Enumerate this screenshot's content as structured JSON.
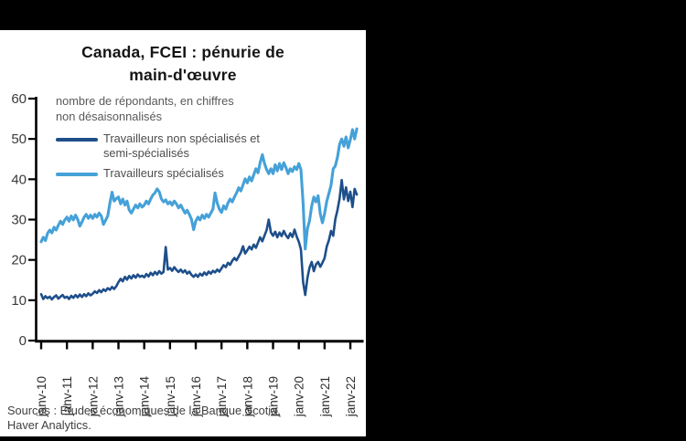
{
  "layout": {
    "background_color": "#000000",
    "panel_color": "#ffffff",
    "axis_color": "#000000",
    "y_tick_label_color": "#3a3a3a",
    "x_tick_label_color": "#2f2f2f"
  },
  "chart_data": {
    "type": "line",
    "title": "Canada, FCEI : pénurie de main-d'œuvre",
    "title_lines": [
      "Canada, FCEI : pénurie de",
      "main-d'œuvre"
    ],
    "subtitle_lines": [
      "nombre de répondants, en chiffres",
      "non désaisonnalisés"
    ],
    "xlabel": "",
    "ylabel": "",
    "ylim": [
      0,
      60
    ],
    "yticks": [
      0,
      10,
      20,
      30,
      40,
      50,
      60
    ],
    "x_tick_labels": [
      "janv-10",
      "janv-11",
      "janv-12",
      "janv-13",
      "janv-14",
      "janv-15",
      "janv-16",
      "janv-17",
      "janv-18",
      "janv-19",
      "janv-20",
      "janv-21",
      "janv-22"
    ],
    "x_frequency": "monthly",
    "x_start": "janv-10",
    "grid": "off",
    "legend_position": "top-left-inside",
    "legend": [
      {
        "label_lines": [
          "Travailleurs non spécialisés et",
          "semi-spécialisés"
        ],
        "color": "#1e4f8a"
      },
      {
        "label_lines": [
          "Travailleurs spécialisés"
        ],
        "color": "#45a1d8"
      }
    ],
    "series": [
      {
        "name": "Travailleurs non spécialisés et semi-spécialisés",
        "color": "#1e4f8a",
        "stroke_width": 2.6,
        "values": [
          11.5,
          10.3,
          11.0,
          10.5,
          10.9,
          10.2,
          10.8,
          11.2,
          10.4,
          10.9,
          11.3,
          10.6,
          10.9,
          10.3,
          11.1,
          10.6,
          11.3,
          10.7,
          11.4,
          10.8,
          11.5,
          11.0,
          11.7,
          11.2,
          11.6,
          12.2,
          11.8,
          12.5,
          12.0,
          12.7,
          12.3,
          13.0,
          12.6,
          13.3,
          12.8,
          13.5,
          14.5,
          15.3,
          14.7,
          15.8,
          15.1,
          16.0,
          15.4,
          16.2,
          15.6,
          16.4,
          15.8,
          16.1,
          15.7,
          16.5,
          15.9,
          16.8,
          16.2,
          17.0,
          16.4,
          17.2,
          16.6,
          17.0,
          23.2,
          17.6,
          18.0,
          17.3,
          18.2,
          17.5,
          17.0,
          17.6,
          16.9,
          17.4,
          16.6,
          17.1,
          16.3,
          15.8,
          16.4,
          15.8,
          16.6,
          16.1,
          16.9,
          16.3,
          17.1,
          16.6,
          17.3,
          16.9,
          17.6,
          17.1,
          17.9,
          18.7,
          18.2,
          19.3,
          18.8,
          19.8,
          20.5,
          19.9,
          20.9,
          21.8,
          23.4,
          21.6,
          22.4,
          23.3,
          22.6,
          23.8,
          23.0,
          24.3,
          25.6,
          24.6,
          26.0,
          27.4,
          30.0,
          26.8,
          26.0,
          27.0,
          25.6,
          26.8,
          25.9,
          27.2,
          26.1,
          25.4,
          26.6,
          25.7,
          27.5,
          25.8,
          24.5,
          22.6,
          14.5,
          11.3,
          15.5,
          18.1,
          19.5,
          17.2,
          18.9,
          19.5,
          18.3,
          19.3,
          20.5,
          23.3,
          24.9,
          27.2,
          26.0,
          30.1,
          32.4,
          35.3,
          39.8,
          35.0,
          38.0,
          34.6,
          36.9,
          33.1,
          37.6,
          36.2
        ]
      },
      {
        "name": "Travailleurs spécialisés",
        "color": "#45a1d8",
        "stroke_width": 3.1,
        "values": [
          24.5,
          25.6,
          24.8,
          26.6,
          27.4,
          26.7,
          28.1,
          27.4,
          28.6,
          29.6,
          28.8,
          29.9,
          30.6,
          29.6,
          30.9,
          29.9,
          31.1,
          30.1,
          28.4,
          29.4,
          30.6,
          31.3,
          30.3,
          31.1,
          30.3,
          31.3,
          30.6,
          31.6,
          30.9,
          28.8,
          29.8,
          30.9,
          34.0,
          36.8,
          34.6,
          35.2,
          35.6,
          33.9,
          35.1,
          33.6,
          34.6,
          32.4,
          31.6,
          32.6,
          33.6,
          32.9,
          33.9,
          33.1,
          33.6,
          34.6,
          33.9,
          35.1,
          36.1,
          36.6,
          37.6,
          36.9,
          35.1,
          34.4,
          34.9,
          33.9,
          34.4,
          33.6,
          34.6,
          33.9,
          32.9,
          33.6,
          32.6,
          31.6,
          32.3,
          31.3,
          30.1,
          27.5,
          29.6,
          30.6,
          29.9,
          31.1,
          30.3,
          31.3,
          30.6,
          31.6,
          32.6,
          36.6,
          34.1,
          32.6,
          31.8,
          33.4,
          32.6,
          34.1,
          35.1,
          34.4,
          35.6,
          36.6,
          37.9,
          37.1,
          38.6,
          40.1,
          39.1,
          40.6,
          39.6,
          41.1,
          42.6,
          41.6,
          44.1,
          46.1,
          44.0,
          42.4,
          41.4,
          42.6,
          41.4,
          43.6,
          42.1,
          43.9,
          42.4,
          44.1,
          42.9,
          41.4,
          42.6,
          41.9,
          43.1,
          42.4,
          43.9,
          42.4,
          34.0,
          22.7,
          27.8,
          29.7,
          33.4,
          35.6,
          34.4,
          35.9,
          31.4,
          29.2,
          31.5,
          34.5,
          36.5,
          38.5,
          42.6,
          43.3,
          45.5,
          48.7,
          50.0,
          48.2,
          50.5,
          47.8,
          49.8,
          52.3,
          50.0,
          52.5
        ]
      }
    ],
    "sources_lines": [
      "Sources : Études économiques de la Banque Scotia,",
      "Haver Analytics."
    ]
  }
}
